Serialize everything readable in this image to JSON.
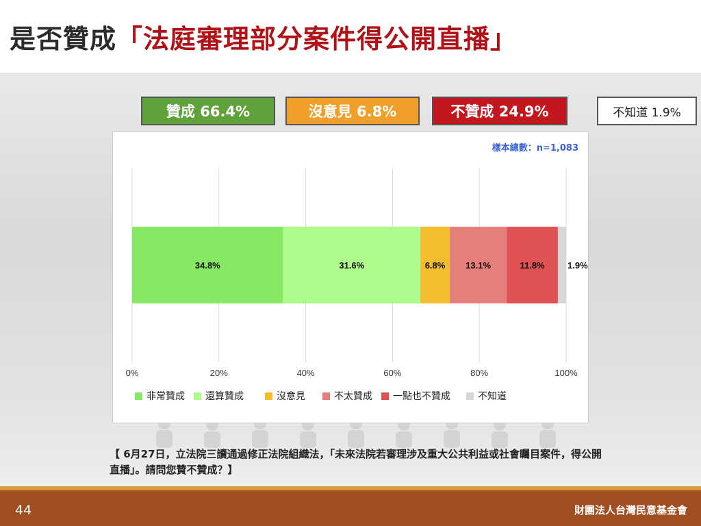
{
  "title": {
    "prefix": "是否贊成",
    "highlight": "「法庭審理部分案件得公開直播」"
  },
  "summary": {
    "approve": "贊成 66.4%",
    "neutral": "沒意見 6.8%",
    "disapprove": "不贊成 24.9%",
    "unknown": "不知道 1.9%"
  },
  "sample_label": "樣本總數：n=1,083",
  "question": "【 6月27日，立法院三讀通過修正法院組織法，「未來法院若審理涉及重大公共利益或社會矚目案件，得公開直播」。請問您贊不贊成？】",
  "footer": {
    "page_number": "44",
    "organization": "財團法人台灣民意基金會"
  },
  "chart_data": {
    "type": "bar",
    "orientation": "horizontal-stacked",
    "categories": [
      ""
    ],
    "series": [
      {
        "name": "非常贊成",
        "values": [
          34.8
        ],
        "label": "34.8%",
        "color": "#87e866"
      },
      {
        "name": "還算贊成",
        "values": [
          31.6
        ],
        "label": "31.6%",
        "color": "#adfc8c"
      },
      {
        "name": "沒意見",
        "values": [
          6.8
        ],
        "label": "6.8%",
        "color": "#f2bd2f"
      },
      {
        "name": "不太贊成",
        "values": [
          13.1
        ],
        "label": "13.1%",
        "color": "#e57f7c"
      },
      {
        "name": "一點也不贊成",
        "values": [
          11.8
        ],
        "label": "11.8%",
        "color": "#e05254"
      },
      {
        "name": "不知道",
        "values": [
          1.9
        ],
        "label": "1.9%",
        "color": "#d7d7d7"
      }
    ],
    "xlim": [
      0,
      100
    ],
    "x_ticks": [
      "0%",
      "20%",
      "40%",
      "60%",
      "80%",
      "100%"
    ],
    "grid": true,
    "legend_position": "bottom"
  }
}
